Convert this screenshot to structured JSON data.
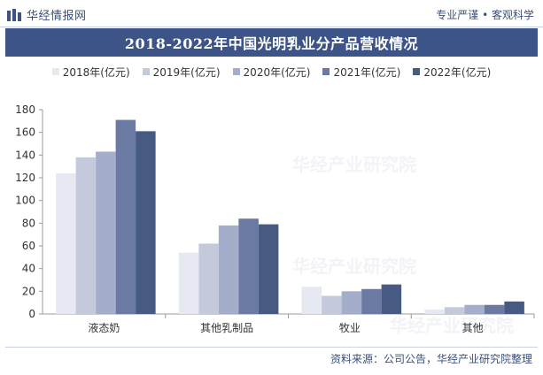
{
  "header": {
    "brand": "华经情报网",
    "tagline": "专业严谨 • 客观科学"
  },
  "title": "2018-2022年中国光明乳业分产品营收情况",
  "source": "资料来源：公司公告，华经产业研究院整理",
  "watermark": "华经产业研究院",
  "colors": {
    "title_bg": "#3d5488",
    "s2018": "#e6e9f1",
    "s2019": "#c4cadb",
    "s2020": "#a4aecb",
    "s2021": "#6a7aa3",
    "s2022": "#475a82"
  },
  "chart_data": {
    "type": "bar",
    "categories": [
      "液态奶",
      "其他乳制品",
      "牧业",
      "其他"
    ],
    "series": [
      {
        "name": "2018年(亿元)",
        "values": [
          124,
          54,
          24,
          4
        ]
      },
      {
        "name": "2019年(亿元)",
        "values": [
          138,
          62,
          16,
          6
        ]
      },
      {
        "name": "2020年(亿元)",
        "values": [
          143,
          78,
          20,
          8
        ]
      },
      {
        "name": "2021年(亿元)",
        "values": [
          171,
          84,
          22,
          8
        ]
      },
      {
        "name": "2022年(亿元)",
        "values": [
          161,
          79,
          26,
          11
        ]
      }
    ],
    "ylim": [
      0,
      180
    ],
    "yticks": [
      0,
      20,
      40,
      60,
      80,
      100,
      120,
      140,
      160,
      180
    ],
    "grid": false,
    "legend": "top-center"
  }
}
